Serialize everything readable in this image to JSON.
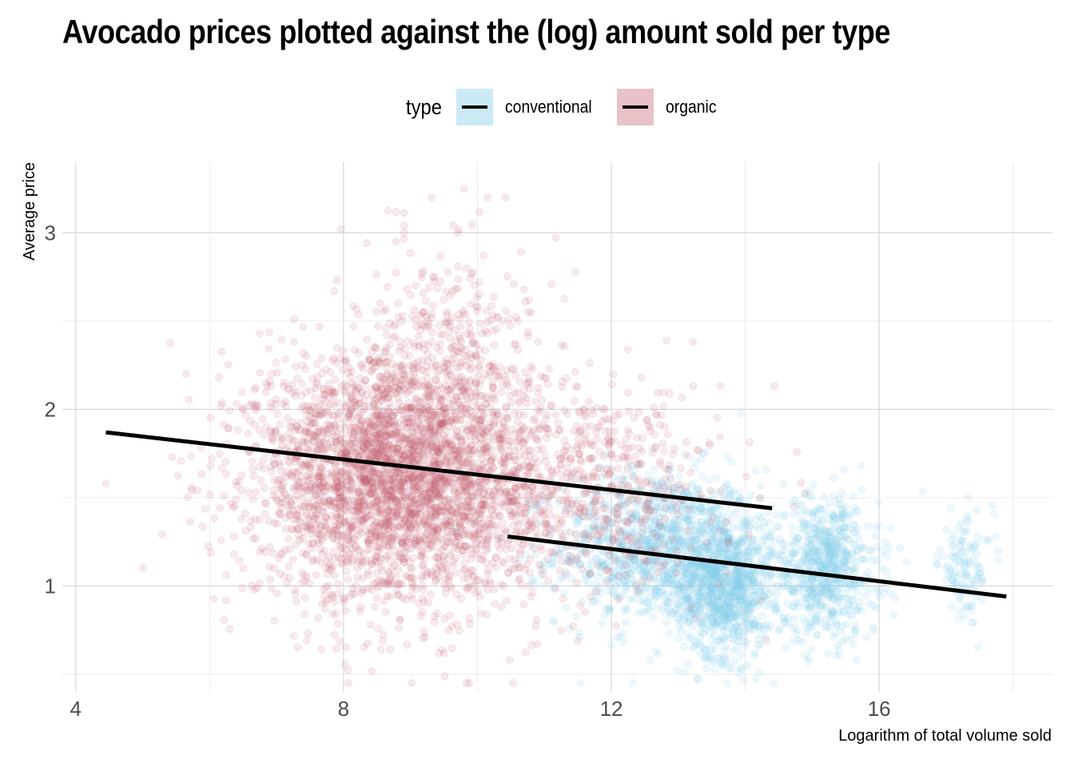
{
  "chart_data": {
    "type": "scatter",
    "title": "Avocado prices plotted against the (log) amount sold per type",
    "xlabel": "Logarithm of total volume sold",
    "ylabel": "Average price",
    "xlim": [
      3.8,
      18.6
    ],
    "ylim": [
      0.4,
      3.4
    ],
    "x_ticks": [
      4,
      8,
      12,
      16
    ],
    "y_ticks": [
      1,
      2,
      3
    ],
    "grid": true,
    "legend": {
      "title": "type",
      "placement": "top",
      "entries": [
        "conventional",
        "organic"
      ]
    },
    "series": [
      {
        "name": "conventional",
        "color": "#87ceeb",
        "fill_alpha": 0.15,
        "trend": {
          "x": [
            10.45,
            17.9
          ],
          "y": [
            1.28,
            0.94
          ]
        },
        "clusters": [
          {
            "x_mean": 12.7,
            "x_sd": 0.75,
            "y_mean": 1.22,
            "y_sd": 0.22,
            "n": 1100
          },
          {
            "x_mean": 13.7,
            "x_sd": 0.35,
            "y_mean": 1.0,
            "y_sd": 0.2,
            "n": 900
          },
          {
            "x_mean": 15.2,
            "x_sd": 0.4,
            "y_mean": 1.1,
            "y_sd": 0.2,
            "n": 700
          },
          {
            "x_mean": 17.3,
            "x_sd": 0.2,
            "y_mean": 1.12,
            "y_sd": 0.15,
            "n": 120
          }
        ]
      },
      {
        "name": "organic",
        "color": "#c3596d",
        "fill_alpha": 0.13,
        "trend": {
          "x": [
            4.45,
            14.4
          ],
          "y": [
            1.87,
            1.44
          ]
        },
        "clusters": [
          {
            "x_mean": 8.8,
            "x_sd": 1.05,
            "y_mean": 1.62,
            "y_sd": 0.35,
            "n": 3400
          },
          {
            "x_mean": 11.6,
            "x_sd": 1.0,
            "y_mean": 1.55,
            "y_sd": 0.3,
            "n": 650
          },
          {
            "x_mean": 9.6,
            "x_sd": 0.6,
            "y_mean": 2.45,
            "y_sd": 0.3,
            "n": 250
          }
        ],
        "outliers": [
          {
            "x": 4.45,
            "y": 1.58
          },
          {
            "x": 9.8,
            "y": 3.25
          },
          {
            "x": 6.5,
            "y": 1.1
          }
        ]
      }
    ],
    "trend_color": "#000000"
  }
}
